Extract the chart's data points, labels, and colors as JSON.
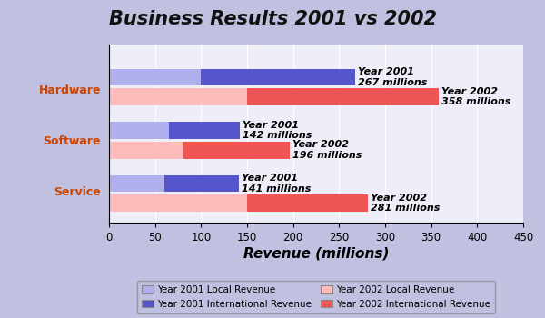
{
  "title": "Business Results 2001 vs 2002",
  "categories": [
    "Hardware",
    "Software",
    "Service"
  ],
  "xlabel": "Revenue (millions)",
  "xlim": [
    0,
    450
  ],
  "xticks": [
    0,
    50,
    100,
    150,
    200,
    250,
    300,
    350,
    400,
    450
  ],
  "year2001_local": [
    100,
    65,
    60
  ],
  "year2001_international": [
    167,
    77,
    81
  ],
  "year2002_local": [
    150,
    80,
    150
  ],
  "year2002_international": [
    208,
    116,
    131
  ],
  "year2001_total": [
    267,
    142,
    141
  ],
  "year2002_total": [
    358,
    196,
    281
  ],
  "color_2001_local": "#b0b0ee",
  "color_2001_international": "#5555cc",
  "color_2002_local": "#ffbbbb",
  "color_2002_international": "#ee5555",
  "title_color": "#111111",
  "title_bg": "#8888dd",
  "bg_outer": "#c0c0e0",
  "bg_inner": "#eeeef8",
  "bar_height": 0.32,
  "title_fontsize": 15,
  "label_fontsize": 8,
  "legend_labels_col1": [
    "Year 2001 Local Revenue",
    "Year 2002 Local Revenue"
  ],
  "legend_labels_col2": [
    "Year 2001 International Revenue",
    "Year 2002 International Revenue"
  ],
  "legend_colors_col1": [
    "#b0b0ee",
    "#ffbbbb"
  ],
  "legend_colors_col2": [
    "#5555cc",
    "#ee5555"
  ]
}
